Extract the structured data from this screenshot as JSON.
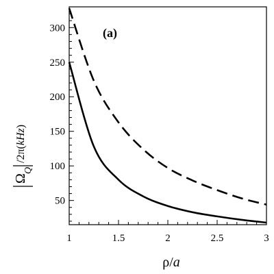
{
  "chart_data": {
    "type": "line",
    "annotation": "(a)",
    "xlabel": {
      "main": "ρ/",
      "var": "a"
    },
    "ylabel": {
      "omega": "Ω",
      "subscript": "Q",
      "rest": "/2π(",
      "unit": "kHz",
      "close": ")"
    },
    "xlim": [
      1,
      3
    ],
    "ylim": [
      15,
      330
    ],
    "x_ticks": [
      1,
      1.5,
      2,
      2.5,
      3
    ],
    "x_tick_labels": [
      "1",
      "1.5",
      "2",
      "2.5",
      "3"
    ],
    "y_ticks": [
      50,
      100,
      150,
      200,
      250,
      300
    ],
    "y_tick_labels": [
      "50",
      "100",
      "150",
      "200",
      "250",
      "300"
    ],
    "grid": false,
    "series": [
      {
        "style": "solid",
        "x": [
          1.0,
          1.25,
          1.5,
          1.75,
          2.0,
          2.25,
          2.5,
          2.75,
          3.0
        ],
        "y": [
          250,
          128,
          80,
          56,
          42,
          33,
          27,
          22,
          18
        ]
      },
      {
        "style": "dashed",
        "x": [
          1.0,
          1.25,
          1.5,
          1.75,
          2.0,
          2.25,
          2.5,
          2.75,
          3.0
        ],
        "y": [
          328,
          223,
          163,
          124,
          97,
          79,
          65,
          53,
          44
        ]
      }
    ]
  }
}
